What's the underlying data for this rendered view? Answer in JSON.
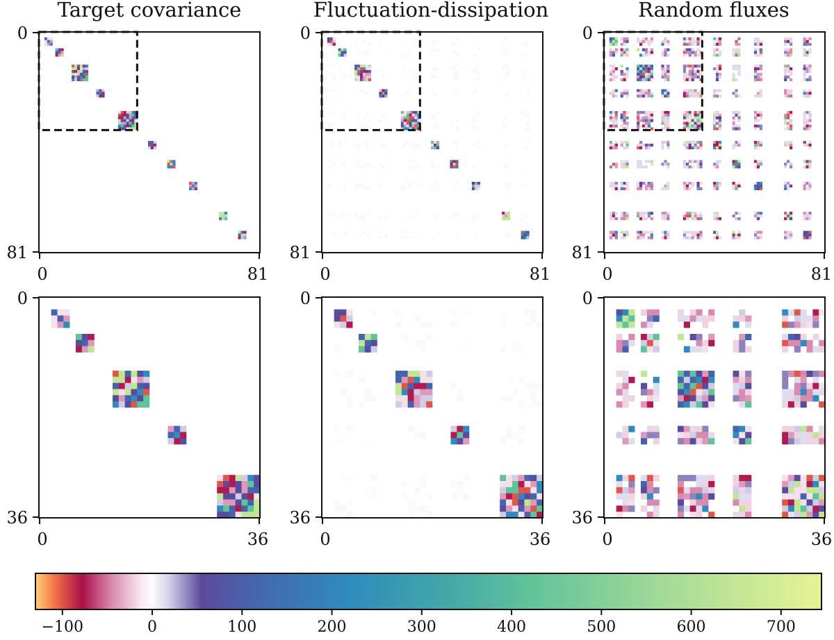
{
  "chart_data": {
    "type": "heatmap",
    "panels": [
      {
        "title": "Target covariance",
        "row": "full",
        "n": 81,
        "pattern": "target",
        "seed": 11,
        "xticks": [
          "0",
          "81"
        ],
        "yticks": [
          "0",
          "81"
        ],
        "zoom_box": [
          0,
          36
        ]
      },
      {
        "title": "Fluctuation-dissipation",
        "row": "full",
        "n": 81,
        "pattern": "fd",
        "seed": 23,
        "xticks": [
          "0",
          "81"
        ],
        "yticks": [
          "0",
          "81"
        ],
        "zoom_box": [
          0,
          36
        ]
      },
      {
        "title": "Random fluxes",
        "row": "full",
        "n": 81,
        "pattern": "rf",
        "seed": 37,
        "xticks": [
          "0",
          "81"
        ],
        "yticks": [
          "0",
          "81"
        ],
        "zoom_box": [
          0,
          36
        ]
      },
      {
        "title": "",
        "row": "zoom",
        "n": 36,
        "pattern": "target",
        "seed": 11,
        "xticks": [
          "0",
          "36"
        ],
        "yticks": [
          "0",
          "36"
        ]
      },
      {
        "title": "",
        "row": "zoom",
        "n": 36,
        "pattern": "fd",
        "seed": 23,
        "xticks": [
          "0",
          "36"
        ],
        "yticks": [
          "0",
          "36"
        ]
      },
      {
        "title": "",
        "row": "zoom",
        "n": 36,
        "pattern": "rf",
        "seed": 37,
        "xticks": [
          "0",
          "36"
        ],
        "yticks": [
          "0",
          "36"
        ]
      }
    ],
    "blocks": [
      {
        "start": 2,
        "size": 3
      },
      {
        "start": 6,
        "size": 3
      },
      {
        "start": 12,
        "size": 6
      },
      {
        "start": 21,
        "size": 3
      },
      {
        "start": 29,
        "size": 7
      },
      {
        "start": 40,
        "size": 3
      },
      {
        "start": 47,
        "size": 3
      },
      {
        "start": 55,
        "size": 3
      },
      {
        "start": 66,
        "size": 3
      },
      {
        "start": 73,
        "size": 3
      }
    ],
    "colorbar": {
      "vmin": -130,
      "vmax": 745,
      "ticks": [
        -100,
        0,
        100,
        200,
        300,
        400,
        500,
        600,
        700
      ],
      "tick_labels": [
        "−100",
        "0",
        "100",
        "200",
        "300",
        "400",
        "500",
        "600",
        "700"
      ],
      "colormap_stops": [
        {
          "value": -130,
          "color": "#ffd37a"
        },
        {
          "value": -110,
          "color": "#f57848"
        },
        {
          "value": -78,
          "color": "#ab0f48"
        },
        {
          "value": -45,
          "color": "#d98ab0"
        },
        {
          "value": -12,
          "color": "#f8eaf1"
        },
        {
          "value": 0,
          "color": "#fcfcfe"
        },
        {
          "value": 18,
          "color": "#d6d3ea"
        },
        {
          "value": 55,
          "color": "#5b4a9b"
        },
        {
          "value": 120,
          "color": "#4368b0"
        },
        {
          "value": 220,
          "color": "#2f8bbd"
        },
        {
          "value": 340,
          "color": "#48aaa5"
        },
        {
          "value": 420,
          "color": "#60c39a"
        },
        {
          "value": 560,
          "color": "#9fd998"
        },
        {
          "value": 745,
          "color": "#e7f394"
        }
      ]
    }
  }
}
